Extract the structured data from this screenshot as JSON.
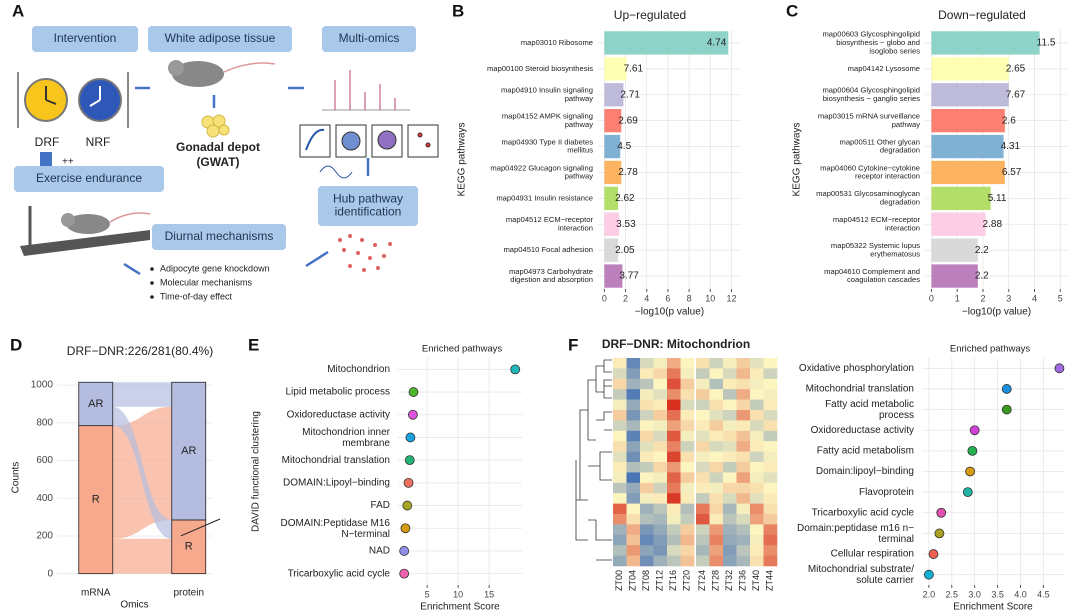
{
  "panels": [
    "A",
    "B",
    "C",
    "D",
    "E",
    "F"
  ],
  "diagram": {
    "intervention": "Intervention",
    "wat": "White adipose tissue",
    "omics": "Multi-omics",
    "drf": "DRF",
    "nrf": "NRF",
    "plus": "++",
    "exercise": "Exercise endurance",
    "depot": "Gonadal depot",
    "gwat": "(GWAT)",
    "hub": "Hub pathway\nidentification",
    "diurnal": "Diurnal mechanisms",
    "bullets": [
      "Adipocyte gene knockdown",
      "Molecular mechanisms",
      "Time-of-day effect"
    ]
  },
  "chart_data": [
    {
      "type": "bar",
      "orientation": "horizontal",
      "title": "Up−regulated",
      "ylabel": "KEGG pathways",
      "xlabel": "−log10(p value)",
      "categories": [
        "map03010 Ribosome",
        "map00100 Steroid biosynthesis",
        "map04910 Insulin signaling\npathway",
        "map04152 AMPK signaling\npathway",
        "map04930 Type II diabetes\nmellitus",
        "map04922 Glucagon signaling\npathway",
        "map04931 Insulin resistance",
        "map04512 ECM−receptor\ninteraction",
        "map04510 Focal adhesion",
        "map04973 Carbohydrate\ndigestion and absorption"
      ],
      "values": [
        11.7,
        2.1,
        1.8,
        1.6,
        1.5,
        1.6,
        1.3,
        1.4,
        1.3,
        1.7
      ],
      "bar_numbers": [
        4.74,
        7.61,
        2.71,
        2.69,
        4.5,
        2.78,
        2.62,
        3.53,
        2.05,
        3.77
      ],
      "colors": [
        "#8dd3c7",
        "#ffffb3",
        "#bebada",
        "#fb8072",
        "#80b1d3",
        "#fdb462",
        "#b3de69",
        "#fccde5",
        "#d9d9d9",
        "#bc80bd"
      ],
      "xlim": [
        -0.6,
        12.9
      ],
      "xticks": [
        0,
        2,
        4,
        6,
        8,
        10,
        12
      ],
      "grid": true
    },
    {
      "type": "bar",
      "orientation": "horizontal",
      "title": "Down−regulated",
      "ylabel": "KEGG pathways",
      "xlabel": "−log10(p value)",
      "categories": [
        "map00603 Glycosphingolipid\nbiosynthesis − globo and\nisoglobo series",
        "map04142 Lysosome",
        "map00604 Glycosphingolipid\nbiosynthesis − ganglio series",
        "map03015 mRNA surveillance\npathway",
        "map00511 Other glycan\ndegradation",
        "map04060 Cytokine−cytokine\nreceptor interaction",
        "map00531 Glycosaminoglycan\ndegradation",
        "map04512 ECM−receptor\ninteraction",
        "map05322 Systemic lupus\nerythematosus",
        "map04610 Complement and\ncoagulation cascades"
      ],
      "values": [
        4.2,
        3.0,
        3.0,
        2.85,
        2.8,
        2.85,
        2.3,
        2.1,
        1.8,
        1.8
      ],
      "bar_numbers": [
        11.5,
        2.65,
        7.67,
        2.6,
        4.31,
        6.57,
        5.11,
        2.88,
        2.2,
        2.2
      ],
      "colors": [
        "#8dd3c7",
        "#ffffb3",
        "#bebada",
        "#fb8072",
        "#80b1d3",
        "#fdb462",
        "#b3de69",
        "#fccde5",
        "#d9d9d9",
        "#bc80bd"
      ],
      "xlim": [
        -0.25,
        5.3
      ],
      "xticks": [
        0,
        1,
        2,
        3,
        4,
        5
      ],
      "grid": true
    },
    {
      "type": "alluvial",
      "title": "DRF−DNR:226/281(80.4%)",
      "ylabel": "Counts",
      "xlabel": "Omics",
      "categories": [
        "mRNA",
        "protein"
      ],
      "series": [
        {
          "name": "R",
          "color": "#f7a98e",
          "values": [
            785,
            285
          ]
        },
        {
          "name": "AR",
          "color": "#b4bde0",
          "values": [
            230,
            730
          ]
        }
      ],
      "flows": [
        [
          185,
          600
        ],
        [
          100,
          130
        ]
      ],
      "ylim": [
        -60,
        1080
      ],
      "yticks": [
        0,
        200,
        400,
        600,
        800,
        1000
      ],
      "grid": true
    },
    {
      "type": "dot",
      "title": "Enriched pathways",
      "ylabel": "DAVID functional clustering",
      "xlabel": "Enrichment Score",
      "categories": [
        "Mitochondrion",
        "Lipid metabolic process",
        "Oxidoreductase activity",
        "Mitochondrion inner\nmembrane",
        "Mitochondrial translation",
        "DOMAIN:Lipoyl−binding",
        "FAD",
        "DOMAIN:Peptidase M16\nN−terminal",
        "NAD",
        "Tricarboxylic acid cycle"
      ],
      "values": [
        19.2,
        2.8,
        2.7,
        2.3,
        2.2,
        2.0,
        1.8,
        1.5,
        1.3,
        1.3
      ],
      "colors": [
        "#1fb8b8",
        "#4cb52e",
        "#e055e0",
        "#1aa3e0",
        "#22b573",
        "#f07060",
        "#a8a820",
        "#d49a10",
        "#8f8fe8",
        "#f064b0"
      ],
      "xlim": [
        0.3,
        20.3
      ],
      "xticks": [
        5,
        10,
        15
      ],
      "grid": true
    },
    {
      "type": "heatmap",
      "title": "DRF−DNR: Mitochondrion",
      "columns": [
        "ZT00",
        "ZT04",
        "ZT08",
        "ZT12",
        "ZT16",
        "ZT20",
        "ZT24",
        "ZT28",
        "ZT32",
        "ZT36",
        "ZT40",
        "ZT44"
      ],
      "colors": [
        "#4a74b4",
        "#fdf5c0",
        "#d7301f"
      ],
      "values": [
        [
          0.3,
          -1.4,
          -0.2,
          0.1,
          0.9,
          0.2,
          0.4,
          -0.3,
          0.1,
          0.6,
          -0.1,
          0.2
        ],
        [
          -0.2,
          -1.1,
          0.3,
          0.5,
          1.4,
          0.1,
          -0.4,
          0.2,
          -0.2,
          0.8,
          0.3,
          -0.3
        ],
        [
          0.5,
          -0.8,
          -0.5,
          0.2,
          1.8,
          0.6,
          0.1,
          -0.6,
          0.3,
          0.4,
          0.1,
          0.2
        ],
        [
          -0.4,
          -1.6,
          0.1,
          -0.1,
          1.2,
          0.4,
          0.6,
          0.2,
          -0.5,
          0.9,
          0.2,
          0.1
        ],
        [
          0.1,
          -0.9,
          0.4,
          0.3,
          2.1,
          -0.2,
          -0.3,
          0.4,
          0.2,
          0.5,
          -0.4,
          0.3
        ],
        [
          0.6,
          -1.2,
          -0.3,
          0.6,
          1.5,
          0.3,
          0.2,
          -0.1,
          -0.3,
          1.1,
          0.4,
          -0.2
        ],
        [
          -0.3,
          -0.7,
          0.2,
          0.1,
          1.0,
          0.5,
          0.3,
          0.6,
          0.1,
          0.3,
          -0.2,
          0.4
        ],
        [
          0.2,
          -1.5,
          0.5,
          -0.2,
          1.7,
          0.1,
          -0.1,
          0.3,
          0.4,
          0.7,
          0.1,
          -0.4
        ],
        [
          0.4,
          -1.0,
          -0.1,
          0.4,
          1.3,
          -0.3,
          0.5,
          -0.2,
          -0.1,
          0.9,
          0.3,
          0.2
        ],
        [
          -0.1,
          -1.3,
          0.3,
          0.2,
          1.9,
          0.4,
          0.1,
          0.2,
          0.3,
          0.4,
          -0.3,
          0.1
        ],
        [
          0.3,
          -0.6,
          -0.4,
          0.5,
          1.1,
          0.2,
          -0.2,
          0.5,
          -0.4,
          0.6,
          0.2,
          0.3
        ],
        [
          0.1,
          -1.7,
          0.2,
          0.1,
          1.6,
          0.6,
          0.4,
          -0.3,
          0.2,
          1.0,
          0.1,
          -0.1
        ],
        [
          -0.5,
          -0.9,
          0.6,
          -0.3,
          1.4,
          0.1,
          0.3,
          0.1,
          0.5,
          0.5,
          0.4,
          0.2
        ],
        [
          0.2,
          -1.1,
          0.1,
          0.3,
          2.0,
          0.3,
          -0.4,
          0.4,
          -0.2,
          0.8,
          -0.1,
          0.3
        ],
        [
          1.6,
          0.2,
          -0.8,
          -0.5,
          0.3,
          -0.6,
          1.4,
          0.5,
          -0.7,
          0.1,
          1.2,
          0.4
        ],
        [
          1.2,
          0.4,
          -0.6,
          -0.7,
          0.1,
          -0.4,
          1.7,
          0.3,
          -0.5,
          -0.2,
          1.0,
          0.6
        ],
        [
          -0.8,
          0.9,
          -1.2,
          -0.9,
          -0.4,
          0.6,
          -0.3,
          1.1,
          -0.8,
          -0.6,
          0.2,
          1.3
        ],
        [
          -1.0,
          0.7,
          -1.4,
          -1.1,
          -0.6,
          0.8,
          -0.5,
          1.3,
          -0.9,
          -0.8,
          0.1,
          1.5
        ],
        [
          -0.6,
          1.1,
          -1.0,
          -1.2,
          -0.2,
          0.5,
          -0.7,
          1.0,
          -1.1,
          -0.5,
          0.3,
          1.2
        ],
        [
          -0.9,
          0.8,
          -1.3,
          -0.8,
          -0.5,
          0.7,
          -0.4,
          1.2,
          -1.0,
          -0.7,
          0.4,
          1.4
        ]
      ]
    },
    {
      "type": "dot",
      "title": "Enriched pathways",
      "xlabel": "Enrichment Score",
      "categories": [
        "Oxidative phosphorylation",
        "Mitochondrial translation",
        "Fatty acid metabolic\nprocess",
        "Oxidoreductase activity",
        "Fatty acid metabolism",
        "Domain:lipoyl−binding",
        "Flavoprotein",
        "Tricarboxylic acid cycle",
        "Domain:peptidase m16 n−\nterminal",
        "Cellular respiration",
        "Mitochondrial substrate/\nsolute carrier"
      ],
      "values": [
        4.85,
        3.7,
        3.7,
        3.0,
        2.95,
        2.9,
        2.85,
        2.27,
        2.23,
        2.1,
        2.0
      ],
      "colors": [
        "#a06be0",
        "#1a8fe0",
        "#3a9a20",
        "#d040d8",
        "#22b050",
        "#d49a10",
        "#20b5a5",
        "#e050b0",
        "#a8a020",
        "#f06050",
        "#10b0d8"
      ],
      "xlim": [
        1.85,
        4.95
      ],
      "xticks": [
        {
          "value": 2,
          "label": "2.0"
        },
        2.5,
        {
          "value": 3,
          "label": "3.0"
        },
        3.5,
        {
          "value": 4,
          "label": "4.0"
        },
        4.5
      ],
      "grid": true
    }
  ]
}
